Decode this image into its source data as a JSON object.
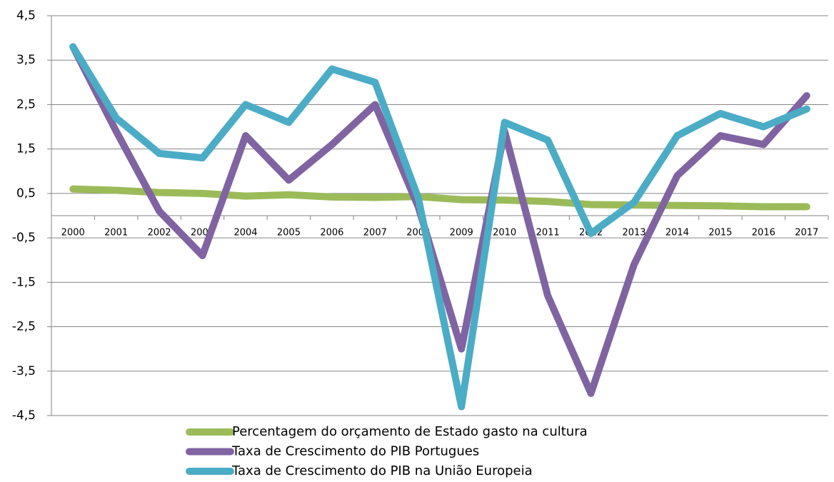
{
  "chart_data": {
    "type": "line",
    "categories": [
      "2000",
      "2001",
      "2002",
      "2003",
      "2004",
      "2005",
      "2006",
      "2007",
      "2008",
      "2009",
      "2010",
      "2011",
      "2012",
      "2013",
      "2014",
      "2015",
      "2016",
      "2017"
    ],
    "series": [
      {
        "name": "Percentagem do orçamento de Estado gasto na cultura",
        "color": "#9bbb59",
        "values": [
          0.6,
          0.57,
          0.52,
          0.5,
          0.44,
          0.47,
          0.42,
          0.41,
          0.43,
          0.36,
          0.35,
          0.32,
          0.25,
          0.24,
          0.23,
          0.22,
          0.2,
          0.2
        ]
      },
      {
        "name": "Taxa de Crescimento do PIB Portugues",
        "color": "#8064a2",
        "values": [
          3.8,
          1.9,
          0.1,
          -0.9,
          1.8,
          0.8,
          1.6,
          2.5,
          0.2,
          -3.0,
          1.9,
          -1.8,
          -4.0,
          -1.1,
          0.9,
          1.8,
          1.6,
          2.7
        ]
      },
      {
        "name": "Taxa de Crescimento do PIB na União Europeia",
        "color": "#4bacc6",
        "values": [
          3.8,
          2.2,
          1.4,
          1.3,
          2.5,
          2.1,
          3.3,
          3.0,
          0.4,
          -4.3,
          2.1,
          1.7,
          -0.4,
          0.3,
          1.8,
          2.3,
          2.0,
          2.4
        ]
      }
    ],
    "ylim": [
      -4.5,
      4.5
    ],
    "yticks": [
      {
        "value": -4.5,
        "label": "-4,5"
      },
      {
        "value": -3.5,
        "label": "-3,5"
      },
      {
        "value": -2.5,
        "label": "-2,5"
      },
      {
        "value": -1.5,
        "label": "-1,5"
      },
      {
        "value": -0.5,
        "label": "-0,5"
      },
      {
        "value": 0.5,
        "label": "0,5"
      },
      {
        "value": 1.5,
        "label": "1,5"
      },
      {
        "value": 2.5,
        "label": "2,5"
      },
      {
        "value": 3.5,
        "label": "3,5"
      },
      {
        "value": 4.5,
        "label": "4,5"
      }
    ],
    "grid": true,
    "legend": "bottom"
  }
}
